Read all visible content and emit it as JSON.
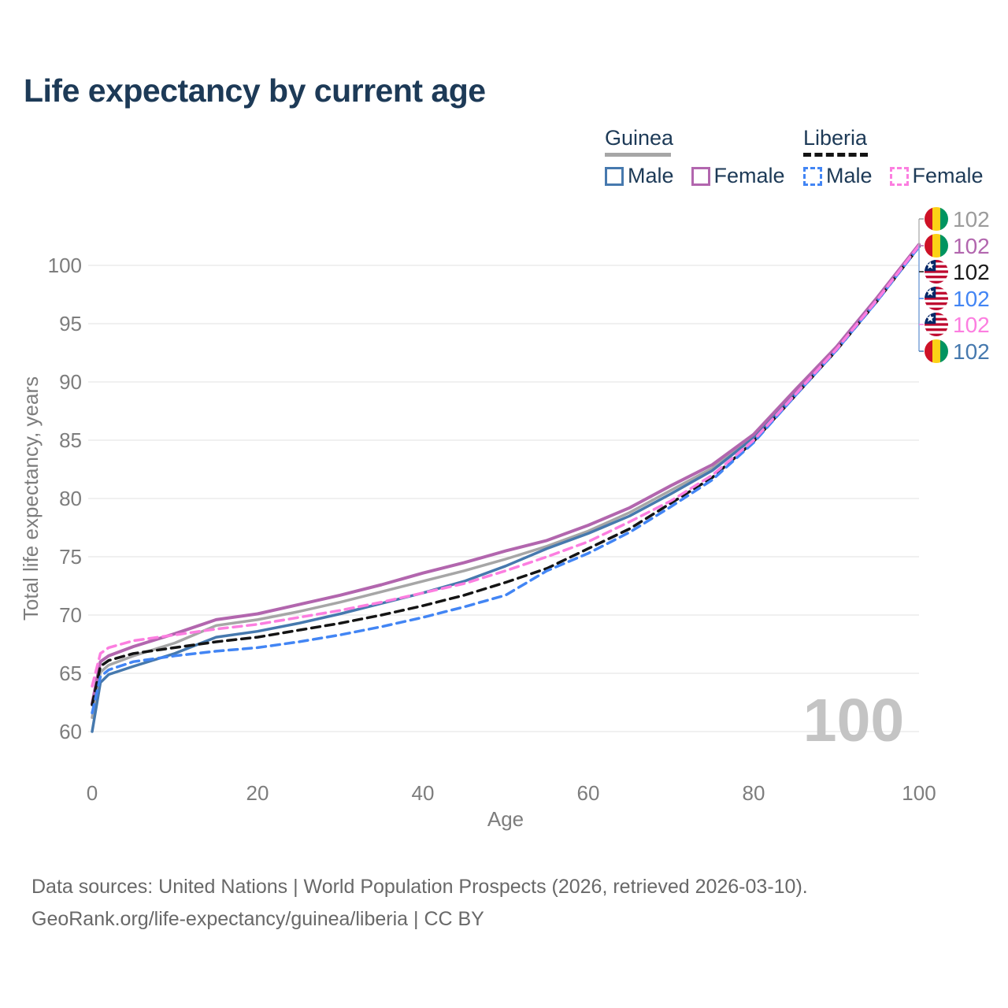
{
  "title": "Life expectancy by current age",
  "legend": {
    "groups": [
      {
        "label": "Guinea",
        "underline_color": "#a6a6a6",
        "underline_style": "solid",
        "items": [
          {
            "label": "Male",
            "color": "#4679ae",
            "dash": "solid"
          },
          {
            "label": "Female",
            "color": "#b266ae",
            "dash": "solid"
          }
        ]
      },
      {
        "label": "Liberia",
        "underline_color": "#141414",
        "underline_style": "dashed",
        "items": [
          {
            "label": "Male",
            "color": "#4285f4",
            "dash": "dashed"
          },
          {
            "label": "Female",
            "color": "#fc7ee0",
            "dash": "dashed"
          }
        ]
      }
    ]
  },
  "chart_data": {
    "type": "line",
    "title": "Life expectancy by current age",
    "xlabel": "Age",
    "ylabel": "Total life expectancy, years",
    "xlim": [
      0,
      100
    ],
    "ylim": [
      60,
      102
    ],
    "xticks": [
      0,
      20,
      40,
      60,
      80,
      100
    ],
    "yticks": [
      60,
      65,
      70,
      75,
      80,
      85,
      90,
      95,
      100
    ],
    "grid": "horizontal",
    "x": [
      0,
      1,
      2,
      5,
      10,
      15,
      20,
      25,
      30,
      35,
      40,
      45,
      50,
      55,
      60,
      65,
      70,
      75,
      80,
      85,
      90,
      95,
      100
    ],
    "series": [
      {
        "id": "guinea_all",
        "name": "Guinea — Both sexes",
        "color": "#a6a6a6",
        "dash": "solid",
        "width": 3.5,
        "values": [
          61.2,
          65.1,
          65.7,
          66.5,
          67.6,
          69.1,
          69.6,
          70.3,
          71.1,
          72.0,
          72.9,
          73.8,
          74.8,
          75.9,
          77.2,
          78.8,
          80.7,
          82.6,
          85.3,
          89.1,
          92.9,
          97.2,
          101.7
        ]
      },
      {
        "id": "guinea_male",
        "name": "Guinea — Male",
        "color": "#4679ae",
        "dash": "solid",
        "width": 3.5,
        "values": [
          60.0,
          64.2,
          64.9,
          65.6,
          66.7,
          68.1,
          68.6,
          69.3,
          70.1,
          71.0,
          71.9,
          72.9,
          74.2,
          75.7,
          77.0,
          78.5,
          80.4,
          82.4,
          85.2,
          89.0,
          92.8,
          97.1,
          101.7
        ]
      },
      {
        "id": "guinea_female",
        "name": "Guinea — Female",
        "color": "#b266ae",
        "dash": "solid",
        "width": 4,
        "values": [
          62.4,
          66.0,
          66.5,
          67.3,
          68.4,
          69.6,
          70.1,
          70.9,
          71.7,
          72.6,
          73.6,
          74.5,
          75.5,
          76.4,
          77.7,
          79.2,
          81.1,
          82.9,
          85.5,
          89.3,
          93.0,
          97.3,
          101.8
        ]
      },
      {
        "id": "liberia_all",
        "name": "Liberia — Both sexes",
        "color": "#141414",
        "dash": "dashed",
        "width": 3.5,
        "values": [
          62.3,
          65.6,
          66.1,
          66.7,
          67.2,
          67.7,
          68.1,
          68.7,
          69.3,
          70.0,
          70.8,
          71.7,
          72.8,
          74.0,
          75.7,
          77.4,
          79.6,
          81.8,
          84.9,
          88.8,
          92.7,
          97.0,
          101.6
        ]
      },
      {
        "id": "liberia_male",
        "name": "Liberia — Male",
        "color": "#4285f4",
        "dash": "dashed",
        "width": 3.5,
        "values": [
          61.6,
          64.7,
          65.3,
          66.0,
          66.5,
          66.9,
          67.2,
          67.7,
          68.3,
          69.0,
          69.8,
          70.7,
          71.7,
          73.8,
          75.3,
          77.1,
          79.3,
          81.6,
          84.8,
          88.8,
          92.7,
          97.0,
          101.6
        ]
      },
      {
        "id": "liberia_female",
        "name": "Liberia — Female",
        "color": "#fc7ee0",
        "dash": "dashed",
        "width": 3.5,
        "values": [
          63.9,
          66.7,
          67.2,
          67.8,
          68.3,
          68.8,
          69.2,
          69.8,
          70.4,
          71.1,
          71.9,
          72.7,
          73.8,
          75.0,
          76.3,
          78.0,
          79.8,
          82.0,
          85.0,
          88.9,
          92.8,
          97.1,
          101.7
        ]
      }
    ],
    "end_labels": [
      {
        "series": "guinea_all",
        "flag": "guinea",
        "value": "102",
        "color": "#9b9b9b"
      },
      {
        "series": "guinea_female",
        "flag": "guinea",
        "value": "102",
        "color": "#b266ae"
      },
      {
        "series": "liberia_all",
        "flag": "liberia",
        "value": "102",
        "color": "#1a1a1a"
      },
      {
        "series": "liberia_male",
        "flag": "liberia",
        "value": "102",
        "color": "#4285f4"
      },
      {
        "series": "liberia_female",
        "flag": "liberia",
        "value": "102",
        "color": "#fc7ee0"
      },
      {
        "series": "guinea_male",
        "flag": "guinea",
        "value": "102",
        "color": "#4679ae"
      }
    ],
    "watermark": "100",
    "axis_color": "#7d7d7d",
    "grid_color": "#e8e8e8",
    "watermark_color": "#c4c4c4"
  },
  "footer": {
    "line1": "Data sources: United Nations | World Population Prospects (2026, retrieved 2026-03-10).",
    "line2": "GeoRank.org/life-expectancy/guinea/liberia | CC BY"
  }
}
